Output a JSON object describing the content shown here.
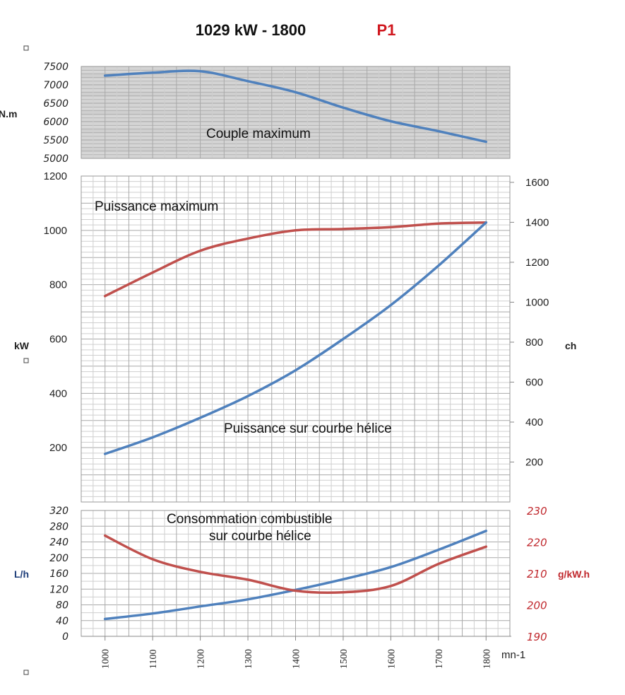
{
  "title": {
    "rating": "1029 kW - 1800",
    "code": "P1"
  },
  "chart_data": [
    {
      "type": "line",
      "panel": "torque",
      "annotation": "Couple maximum",
      "ylabel": "N.m",
      "ylim": [
        5000,
        7500
      ],
      "yticks": [
        5000,
        5500,
        6000,
        6500,
        7000,
        7500
      ],
      "x": [
        1000,
        1100,
        1200,
        1300,
        1400,
        1500,
        1600,
        1700,
        1800
      ],
      "series": [
        {
          "values": [
            7250,
            7330,
            7370,
            7100,
            6800,
            6380,
            6010,
            5740,
            5450
          ],
          "color": "#4f81bd"
        }
      ]
    },
    {
      "type": "line",
      "panel": "power",
      "ylabel": "kW",
      "ylabel_right": "ch",
      "ylim": [
        0,
        1200
      ],
      "yticks": [
        200,
        400,
        600,
        800,
        1000,
        1200
      ],
      "yticks_right": [
        200,
        400,
        600,
        800,
        1000,
        1200,
        1400,
        1600
      ],
      "x": [
        1000,
        1100,
        1200,
        1300,
        1400,
        1500,
        1600,
        1700,
        1800
      ],
      "series": [
        {
          "annotation": "Puissance maximum",
          "values": [
            758,
            845,
            925,
            970,
            1000,
            1005,
            1012,
            1025,
            1029
          ],
          "color": "#c0504d"
        },
        {
          "annotation": "Puissance sur courbe hélice",
          "values": [
            177,
            238,
            310,
            390,
            485,
            600,
            725,
            870,
            1029
          ],
          "color": "#4f81bd"
        }
      ]
    },
    {
      "type": "line",
      "panel": "consumption",
      "annotation_line1": "Consommation combustible",
      "annotation_line2": "sur courbe hélice",
      "ylabel": "L/h",
      "ylabel_right": "g/kW.h",
      "ylim": [
        0,
        320
      ],
      "yticks": [
        0,
        40,
        80,
        120,
        160,
        200,
        240,
        280,
        320
      ],
      "ylim_right": [
        190,
        230
      ],
      "yticks_right": [
        190,
        200,
        210,
        220,
        230
      ],
      "xlabel": "mn-1",
      "x": [
        1000,
        1100,
        1200,
        1300,
        1400,
        1500,
        1600,
        1700,
        1800
      ],
      "series": [
        {
          "values": [
            44,
            58,
            76,
            94,
            118,
            145,
            176,
            220,
            268
          ],
          "color": "#4f81bd",
          "axis": "left"
        },
        {
          "values": [
            222,
            214.5,
            210.5,
            208,
            204.5,
            204,
            206,
            213,
            218.5
          ],
          "color": "#c0504d",
          "axis": "right"
        }
      ]
    }
  ]
}
